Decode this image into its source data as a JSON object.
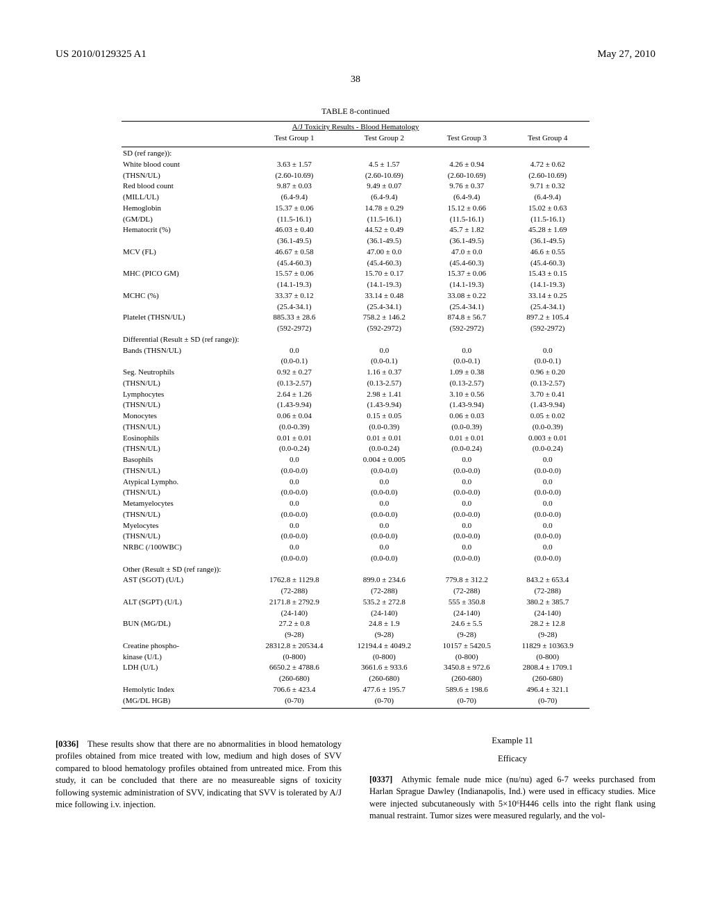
{
  "header": {
    "left": "US 2010/0129325 A1",
    "right": "May 27, 2010"
  },
  "page_number": "38",
  "table": {
    "title": "TABLE 8-continued",
    "subtitle": "A/J Toxicity Results - Blood Hematology",
    "columns": [
      "",
      "Test Group 1",
      "Test Group 2",
      "Test Group 3",
      "Test Group 4"
    ],
    "sections": [
      {
        "header": "SD (ref range)):",
        "rows": [
          {
            "label": "White blood count",
            "g1": "3.63 ± 1.57",
            "g2": "4.5 ± 1.57",
            "g3": "4.26 ± 0.94",
            "g4": "4.72 ± 0.62"
          },
          {
            "label": "(THSN/UL)",
            "g1": "(2.60-10.69)",
            "g2": "(2.60-10.69)",
            "g3": "(2.60-10.69)",
            "g4": "(2.60-10.69)"
          },
          {
            "label": "Red blood count",
            "g1": "9.87 ± 0.03",
            "g2": "9.49 ± 0.07",
            "g3": "9.76 ± 0.37",
            "g4": "9.71 ± 0.32"
          },
          {
            "label": "(MILL/UL)",
            "g1": "(6.4-9.4)",
            "g2": "(6.4-9.4)",
            "g3": "(6.4-9.4)",
            "g4": "(6.4-9.4)"
          },
          {
            "label": "Hemoglobin",
            "g1": "15.37 ± 0.06",
            "g2": "14.78 ± 0.29",
            "g3": "15.12 ± 0.66",
            "g4": "15.02 ± 0.63"
          },
          {
            "label": "(GM/DL)",
            "g1": "(11.5-16.1)",
            "g2": "(11.5-16.1)",
            "g3": "(11.5-16.1)",
            "g4": "(11.5-16.1)"
          },
          {
            "label": "Hematocrit (%)",
            "g1": "46.03 ± 0.40",
            "g2": "44.52 ± 0.49",
            "g3": "45.7 ± 1.82",
            "g4": "45.28 ± 1.69"
          },
          {
            "label": "",
            "g1": "(36.1-49.5)",
            "g2": "(36.1-49.5)",
            "g3": "(36.1-49.5)",
            "g4": "(36.1-49.5)"
          },
          {
            "label": "MCV (FL)",
            "g1": "46.67 ± 0.58",
            "g2": "47.00 ± 0.0",
            "g3": "47.0 ± 0.0",
            "g4": "46.6 ± 0.55"
          },
          {
            "label": "",
            "g1": "(45.4-60.3)",
            "g2": "(45.4-60.3)",
            "g3": "(45.4-60.3)",
            "g4": "(45.4-60.3)"
          },
          {
            "label": "MHC (PICO GM)",
            "g1": "15.57 ± 0.06",
            "g2": "15.70 ± 0.17",
            "g3": "15.37 ± 0.06",
            "g4": "15.43 ± 0.15"
          },
          {
            "label": "",
            "g1": "(14.1-19.3)",
            "g2": "(14.1-19.3)",
            "g3": "(14.1-19.3)",
            "g4": "(14.1-19.3)"
          },
          {
            "label": "MCHC (%)",
            "g1": "33.37 ± 0.12",
            "g2": "33.14 ± 0.48",
            "g3": "33.08 ± 0.22",
            "g4": "33.14 ± 0.25"
          },
          {
            "label": "",
            "g1": "(25.4-34.1)",
            "g2": "(25.4-34.1)",
            "g3": "(25.4-34.1)",
            "g4": "(25.4-34.1)"
          },
          {
            "label": "Platelet (THSN/UL)",
            "g1": "885.33 ± 28.6",
            "g2": "758.2 ± 146.2",
            "g3": "874.8 ± 56.7",
            "g4": "897.2 ± 105.4"
          },
          {
            "label": "",
            "g1": "(592-2972)",
            "g2": "(592-2972)",
            "g3": "(592-2972)",
            "g4": "(592-2972)"
          }
        ]
      },
      {
        "header": "Differential (Result ± SD (ref range)):",
        "rows": [
          {
            "label": "Bands (THSN/UL)",
            "g1": "0.0",
            "g2": "0.0",
            "g3": "0.0",
            "g4": "0.0"
          },
          {
            "label": "",
            "g1": "(0.0-0.1)",
            "g2": "(0.0-0.1)",
            "g3": "(0.0-0.1)",
            "g4": "(0.0-0.1)"
          },
          {
            "label": "Seg. Neutrophils",
            "g1": "0.92 ± 0.27",
            "g2": "1.16 ± 0.37",
            "g3": "1.09 ± 0.38",
            "g4": "0.96 ± 0.20"
          },
          {
            "label": "(THSN/UL)",
            "g1": "(0.13-2.57)",
            "g2": "(0.13-2.57)",
            "g3": "(0.13-2.57)",
            "g4": "(0.13-2.57)"
          },
          {
            "label": "Lymphocytes",
            "g1": "2.64 ± 1.26",
            "g2": "2.98 ± 1.41",
            "g3": "3.10 ± 0.56",
            "g4": "3.70 ± 0.41"
          },
          {
            "label": "(THSN/UL)",
            "g1": "(1.43-9.94)",
            "g2": "(1.43-9.94)",
            "g3": "(1.43-9.94)",
            "g4": "(1.43-9.94)"
          },
          {
            "label": "Monocytes",
            "g1": "0.06 ± 0.04",
            "g2": "0.15 ± 0.05",
            "g3": "0.06 ± 0.03",
            "g4": "0.05 ± 0.02"
          },
          {
            "label": "(THSN/UL)",
            "g1": "(0.0-0.39)",
            "g2": "(0.0-0.39)",
            "g3": "(0.0-0.39)",
            "g4": "(0.0-0.39)"
          },
          {
            "label": "Eosinophils",
            "g1": "0.01 ± 0.01",
            "g2": "0.01 ± 0.01",
            "g3": "0.01 ± 0.01",
            "g4": "0.003 ± 0.01"
          },
          {
            "label": "(THSN/UL)",
            "g1": "(0.0-0.24)",
            "g2": "(0.0-0.24)",
            "g3": "(0.0-0.24)",
            "g4": "(0.0-0.24)"
          },
          {
            "label": "Basophils",
            "g1": "0.0",
            "g2": "0.004 ± 0.005",
            "g3": "0.0",
            "g4": "0.0"
          },
          {
            "label": "(THSN/UL)",
            "g1": "(0.0-0.0)",
            "g2": "(0.0-0.0)",
            "g3": "(0.0-0.0)",
            "g4": "(0.0-0.0)"
          },
          {
            "label": "Atypical Lympho.",
            "g1": "0.0",
            "g2": "0.0",
            "g3": "0.0",
            "g4": "0.0"
          },
          {
            "label": "(THSN/UL)",
            "g1": "(0.0-0.0)",
            "g2": "(0.0-0.0)",
            "g3": "(0.0-0.0)",
            "g4": "(0.0-0.0)"
          },
          {
            "label": "Metamyelocytes",
            "g1": "0.0",
            "g2": "0.0",
            "g3": "0.0",
            "g4": "0.0"
          },
          {
            "label": "(THSN/UL)",
            "g1": "(0.0-0.0)",
            "g2": "(0.0-0.0)",
            "g3": "(0.0-0.0)",
            "g4": "(0.0-0.0)"
          },
          {
            "label": "Myelocytes",
            "g1": "0.0",
            "g2": "0.0",
            "g3": "0.0",
            "g4": "0.0"
          },
          {
            "label": "(THSN/UL)",
            "g1": "(0.0-0.0)",
            "g2": "(0.0-0.0)",
            "g3": "(0.0-0.0)",
            "g4": "(0.0-0.0)"
          },
          {
            "label": "NRBC (/100WBC)",
            "g1": "0.0",
            "g2": "0.0",
            "g3": "0.0",
            "g4": "0.0"
          },
          {
            "label": "",
            "g1": "(0.0-0.0)",
            "g2": "(0.0-0.0)",
            "g3": "(0.0-0.0)",
            "g4": "(0.0-0.0)"
          }
        ]
      },
      {
        "header": "Other (Result ± SD (ref range)):",
        "rows": [
          {
            "label": "AST (SGOT) (U/L)",
            "g1": "1762.8 ± 1129.8",
            "g2": "899.0 ± 234.6",
            "g3": "779.8 ± 312.2",
            "g4": "843.2 ± 653.4"
          },
          {
            "label": "",
            "g1": "(72-288)",
            "g2": "(72-288)",
            "g3": "(72-288)",
            "g4": "(72-288)"
          },
          {
            "label": "ALT (SGPT) (U/L)",
            "g1": "2171.8 ± 2792.9",
            "g2": "535.2 ± 272.8",
            "g3": "555 ± 350.8",
            "g4": "380.2 ± 385.7"
          },
          {
            "label": "",
            "g1": "(24-140)",
            "g2": "(24-140)",
            "g3": "(24-140)",
            "g4": "(24-140)"
          },
          {
            "label": "BUN (MG/DL)",
            "g1": "27.2 ± 0.8",
            "g2": "24.8 ± 1.9",
            "g3": "24.6 ± 5.5",
            "g4": "28.2 ± 12.8"
          },
          {
            "label": "",
            "g1": "(9-28)",
            "g2": "(9-28)",
            "g3": "(9-28)",
            "g4": "(9-28)"
          },
          {
            "label": "Creatine phospho-",
            "g1": "28312.8 ± 20534.4",
            "g2": "12194.4 ± 4049.2",
            "g3": "10157 ± 5420.5",
            "g4": "11829 ± 10363.9"
          },
          {
            "label": "kinase (U/L)",
            "g1": "(0-800)",
            "g2": "(0-800)",
            "g3": "(0-800)",
            "g4": "(0-800)"
          },
          {
            "label": "LDH (U/L)",
            "g1": "6650.2 ± 4788.6",
            "g2": "3661.6 ± 933.6",
            "g3": "3450.8 ± 972.6",
            "g4": "2808.4 ± 1709.1"
          },
          {
            "label": "",
            "g1": "(260-680)",
            "g2": "(260-680)",
            "g3": "(260-680)",
            "g4": "(260-680)"
          },
          {
            "label": "Hemolytic Index",
            "g1": "706.6 ± 423.4",
            "g2": "477.6 ± 195.7",
            "g3": "589.6 ± 198.6",
            "g4": "496.4 ± 321.1"
          },
          {
            "label": "(MG/DL HGB)",
            "g1": "(0-70)",
            "g2": "(0-70)",
            "g3": "(0-70)",
            "g4": "(0-70)"
          }
        ]
      }
    ]
  },
  "body": {
    "left": {
      "para_num": "[0336]",
      "text": " These results show that there are no abnormalities in blood hematology profiles obtained from mice treated with low, medium and high doses of SVV compared to blood hematology profiles obtained from untreated mice. From this study, it can be concluded that there are no measureable signs of toxicity following systemic administration of SVV, indicating that SVV is tolerated by A/J mice following i.v. injection."
    },
    "right": {
      "example_label": "Example 11",
      "example_title": "Efficacy",
      "para_num": "[0337]",
      "text": " Athymic female nude mice (nu/nu) aged 6-7 weeks purchased from Harlan Sprague Dawley (Indianapolis, Ind.) were used in efficacy studies. Mice were injected subcutaneously with 5×10⁶H446 cells into the right flank using manual restraint. Tumor sizes were measured regularly, and the vol-"
    }
  }
}
